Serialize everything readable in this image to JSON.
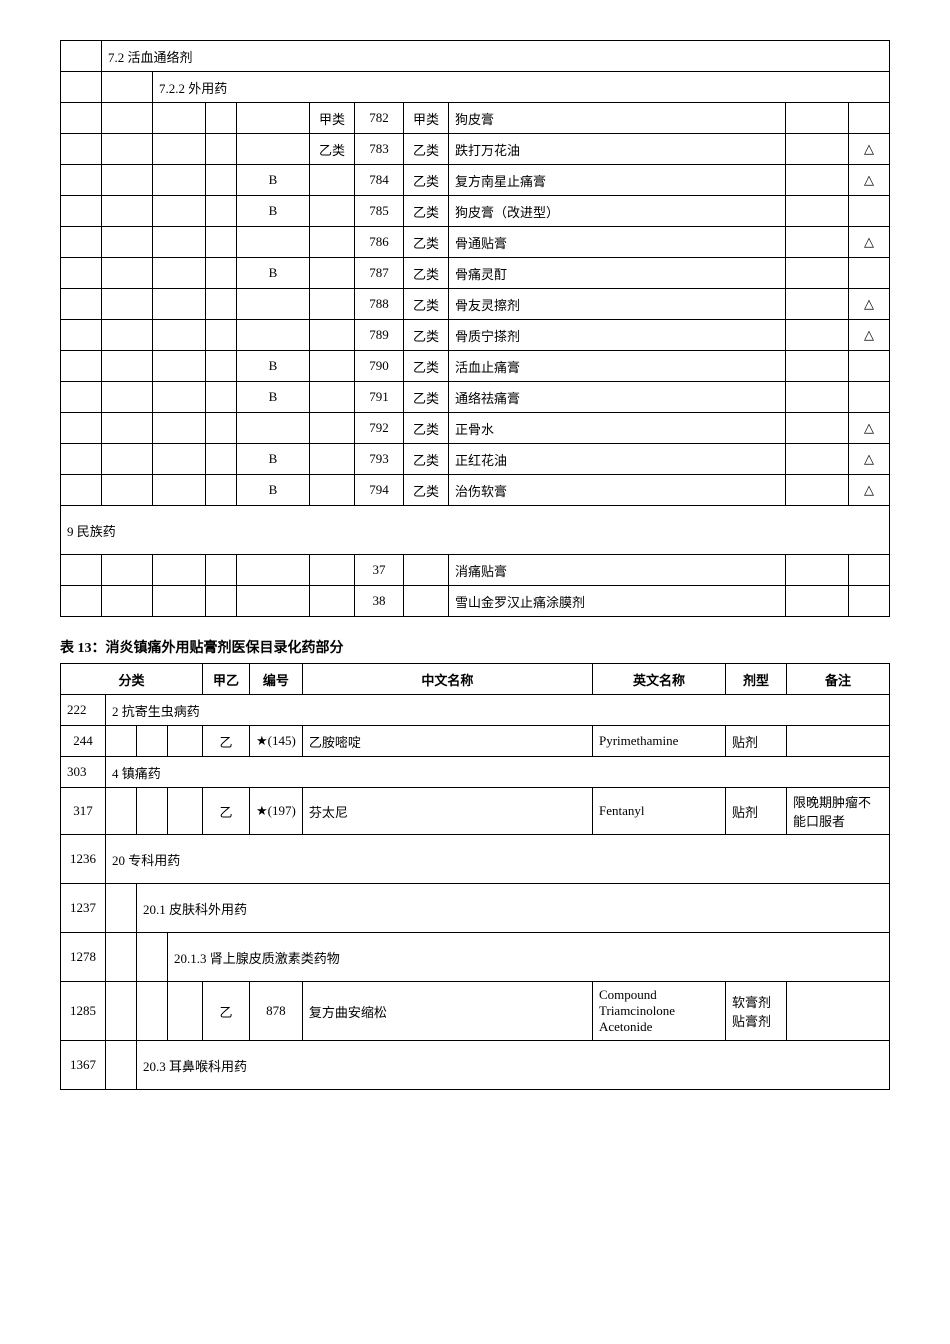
{
  "table1": {
    "section1": "7.2 活血通络剂",
    "section2": "7.2.2 外用药",
    "rows": [
      {
        "code": "",
        "type": "甲类",
        "id": "782",
        "cat": "甲类",
        "name": "狗皮膏",
        "rem": "",
        "tri": ""
      },
      {
        "code": "",
        "type": "乙类",
        "id": "783",
        "cat": "乙类",
        "name": "跌打万花油",
        "rem": "",
        "tri": "△"
      },
      {
        "code": "B",
        "type": "",
        "id": "784",
        "cat": "乙类",
        "name": "复方南星止痛膏",
        "rem": "",
        "tri": "△"
      },
      {
        "code": "B",
        "type": "",
        "id": "785",
        "cat": "乙类",
        "name": "狗皮膏（改进型）",
        "rem": "",
        "tri": ""
      },
      {
        "code": "",
        "type": "",
        "id": "786",
        "cat": "乙类",
        "name": "骨通贴膏",
        "rem": "",
        "tri": "△"
      },
      {
        "code": "B",
        "type": "",
        "id": "787",
        "cat": "乙类",
        "name": "骨痛灵酊",
        "rem": "",
        "tri": ""
      },
      {
        "code": "",
        "type": "",
        "id": "788",
        "cat": "乙类",
        "name": "骨友灵擦剂",
        "rem": "",
        "tri": "△"
      },
      {
        "code": "",
        "type": "",
        "id": "789",
        "cat": "乙类",
        "name": "骨质宁搽剂",
        "rem": "",
        "tri": "△"
      },
      {
        "code": "B",
        "type": "",
        "id": "790",
        "cat": "乙类",
        "name": "活血止痛膏",
        "rem": "",
        "tri": ""
      },
      {
        "code": "B",
        "type": "",
        "id": "791",
        "cat": "乙类",
        "name": "通络祛痛膏",
        "rem": "",
        "tri": ""
      },
      {
        "code": "",
        "type": "",
        "id": "792",
        "cat": "乙类",
        "name": "正骨水",
        "rem": "",
        "tri": "△"
      },
      {
        "code": "B",
        "type": "",
        "id": "793",
        "cat": "乙类",
        "name": "正红花油",
        "rem": "",
        "tri": "△"
      },
      {
        "code": "B",
        "type": "",
        "id": "794",
        "cat": "乙类",
        "name": "治伤软膏",
        "rem": "",
        "tri": "△"
      }
    ],
    "section3": "9 民族药",
    "bottom_rows": [
      {
        "id": "37",
        "name": "消痛贴膏"
      },
      {
        "id": "38",
        "name": "雪山金罗汉止痛涂膜剂"
      }
    ]
  },
  "heading": "表 13：消炎镇痛外用贴膏剂医保目录化药部分",
  "table2": {
    "headers": {
      "c1": "分类",
      "c2": "甲乙",
      "c3": "编号",
      "c4": "中文名称",
      "c5": "英文名称",
      "c6": "剂型",
      "c7": "备注"
    },
    "row_222": {
      "num": "222",
      "label": "2 抗寄生虫病药"
    },
    "row_244": {
      "num": "244",
      "type": "乙",
      "star": "★(145)",
      "cn": "乙胺嘧啶",
      "en": "Pyrimethamine",
      "form": "贴剂",
      "rem": ""
    },
    "row_303": {
      "num": "303",
      "label": "4 镇痛药"
    },
    "row_317": {
      "num": "317",
      "type": "乙",
      "star": "★(197)",
      "cn": "芬太尼",
      "en": "Fentanyl",
      "form": "贴剂",
      "rem": "限晚期肿瘤不能口服者"
    },
    "row_1236": {
      "num": "1236",
      "label": "20 专科用药"
    },
    "row_1237": {
      "num": "1237",
      "label": "20.1 皮肤科外用药"
    },
    "row_1278": {
      "num": "1278",
      "label": "20.1.3 肾上腺皮质激素类药物"
    },
    "row_1285": {
      "num": "1285",
      "type": "乙",
      "star": "878",
      "cn": "复方曲安缩松",
      "en": "Compound Triamcinolone Acetonide",
      "form": "软膏剂贴膏剂",
      "rem": ""
    },
    "row_1367": {
      "num": "1367",
      "label": "20.3 耳鼻喉科用药"
    }
  }
}
